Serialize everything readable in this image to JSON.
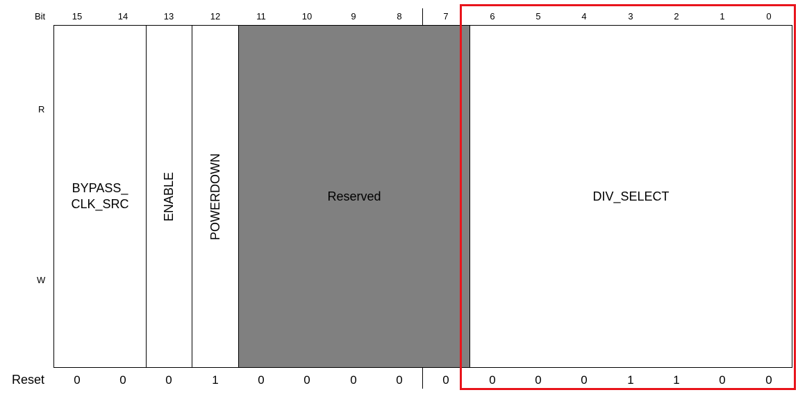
{
  "header": {
    "bit_label": "Bit",
    "bits": [
      "15",
      "14",
      "13",
      "12",
      "11",
      "10",
      "9",
      "8",
      "7",
      "6",
      "5",
      "4",
      "3",
      "2",
      "1",
      "0"
    ]
  },
  "rows": {
    "read_label": "R",
    "write_label": "W",
    "reset_label": "Reset"
  },
  "fields": {
    "bypass_clk_src": "BYPASS_\nCLK_SRC",
    "enable": "ENABLE",
    "powerdown": "POWERDOWN",
    "reserved": "Reserved",
    "div_select": "DIV_SELECT"
  },
  "reset_values": [
    "0",
    "0",
    "0",
    "1",
    "0",
    "0",
    "0",
    "0",
    "0",
    "0",
    "0",
    "0",
    "1",
    "1",
    "0",
    "0"
  ],
  "colors": {
    "reserved_fill": "#808080",
    "highlight": "#e8141b"
  }
}
